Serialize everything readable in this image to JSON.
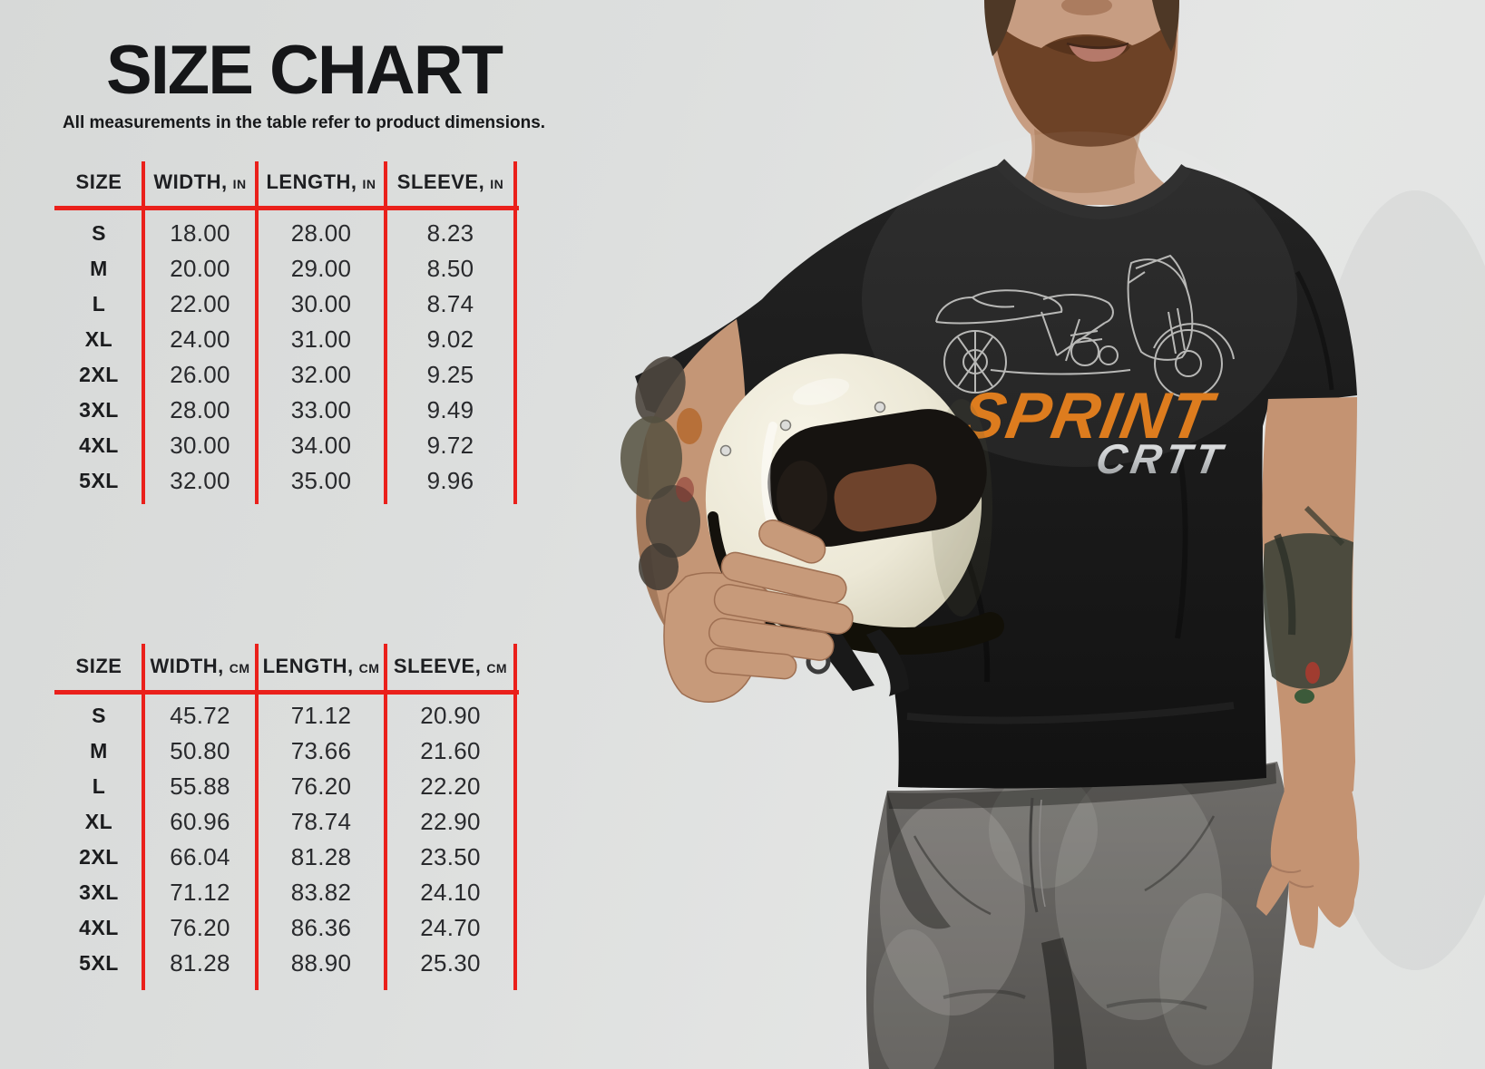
{
  "header": {
    "title": "SIZE CHART",
    "subtitle": "All measurements in the table refer to product dimensions."
  },
  "tables": [
    {
      "name": "inches",
      "columns": [
        {
          "label": "SIZE",
          "unit": ""
        },
        {
          "label": "WIDTH,",
          "unit": "IN"
        },
        {
          "label": "LENGTH,",
          "unit": "IN"
        },
        {
          "label": "SLEEVE,",
          "unit": "IN"
        }
      ],
      "rows": [
        [
          "S",
          "18.00",
          "28.00",
          "8.23"
        ],
        [
          "M",
          "20.00",
          "29.00",
          "8.50"
        ],
        [
          "L",
          "22.00",
          "30.00",
          "8.74"
        ],
        [
          "XL",
          "24.00",
          "31.00",
          "9.02"
        ],
        [
          "2XL",
          "26.00",
          "32.00",
          "9.25"
        ],
        [
          "3XL",
          "28.00",
          "33.00",
          "9.49"
        ],
        [
          "4XL",
          "30.00",
          "34.00",
          "9.72"
        ],
        [
          "5XL",
          "32.00",
          "35.00",
          "9.96"
        ]
      ]
    },
    {
      "name": "centimeters",
      "columns": [
        {
          "label": "SIZE",
          "unit": ""
        },
        {
          "label": "WIDTH,",
          "unit": "CM"
        },
        {
          "label": "LENGTH,",
          "unit": "CM"
        },
        {
          "label": "SLEEVE,",
          "unit": "CM"
        }
      ],
      "rows": [
        [
          "S",
          "45.72",
          "71.12",
          "20.90"
        ],
        [
          "M",
          "50.80",
          "73.66",
          "21.60"
        ],
        [
          "L",
          "55.88",
          "76.20",
          "22.20"
        ],
        [
          "XL",
          "60.96",
          "78.74",
          "22.90"
        ],
        [
          "2XL",
          "66.04",
          "81.28",
          "23.50"
        ],
        [
          "3XL",
          "71.12",
          "83.82",
          "24.10"
        ],
        [
          "4XL",
          "76.20",
          "86.36",
          "24.70"
        ],
        [
          "5XL",
          "81.28",
          "88.90",
          "25.30"
        ]
      ]
    }
  ],
  "photo": {
    "tshirt_graphic": {
      "line1": "SPRINT",
      "line2": "CRTT",
      "art": "motorcycle-line-art"
    },
    "scene": "man in black t-shirt holding cream full-face helmet"
  },
  "colors": {
    "table_line_red": "#ea201b",
    "text_dark": "#1c1d1f",
    "sprint_orange": "#dd7c1e",
    "crtt_silver": "#c3c6c8",
    "helmet_cream": "#efecdd",
    "shirt_black": "#1b1b1b",
    "jeans_gray": "#6e6c69",
    "skin": "#c59976",
    "background": "#dfe1e0"
  }
}
